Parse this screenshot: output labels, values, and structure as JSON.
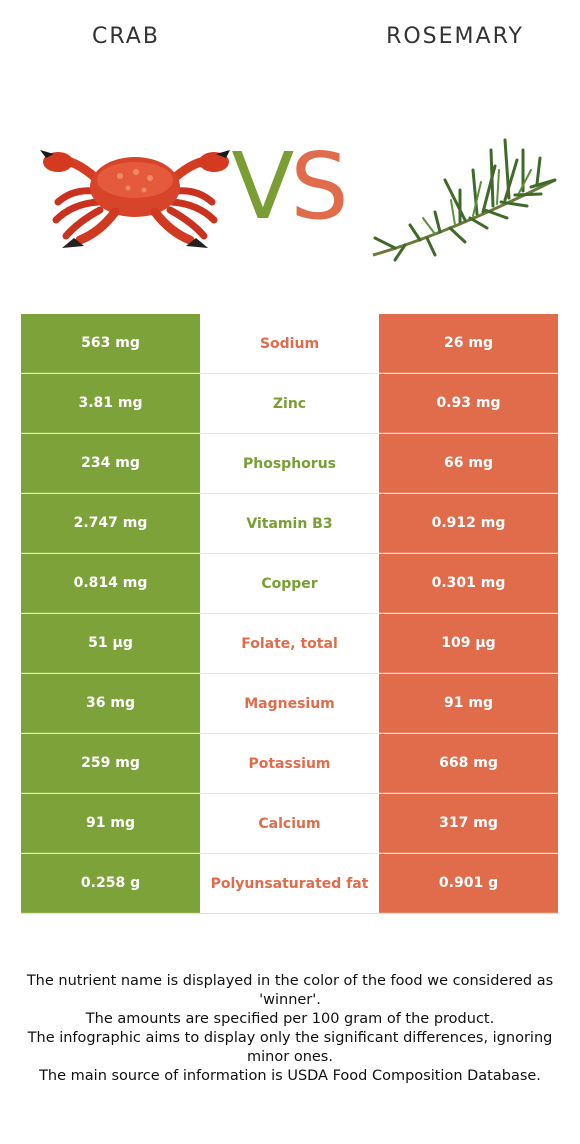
{
  "header": {
    "left_food": "CRAB",
    "right_food": "ROSEMARY",
    "vs_v": "V",
    "vs_s": "S"
  },
  "colors": {
    "crab": "#7ea23a",
    "rosemary": "#e06c4b"
  },
  "rows": [
    {
      "left": "563 mg",
      "nutrient": "Sodium",
      "right": "26 mg",
      "winner": "rosemary"
    },
    {
      "left": "3.81 mg",
      "nutrient": "Zinc",
      "right": "0.93 mg",
      "winner": "crab"
    },
    {
      "left": "234 mg",
      "nutrient": "Phosphorus",
      "right": "66 mg",
      "winner": "crab"
    },
    {
      "left": "2.747 mg",
      "nutrient": "Vitamin B3",
      "right": "0.912 mg",
      "winner": "crab"
    },
    {
      "left": "0.814 mg",
      "nutrient": "Copper",
      "right": "0.301 mg",
      "winner": "crab"
    },
    {
      "left": "51 µg",
      "nutrient": "Folate, total",
      "right": "109 µg",
      "winner": "rosemary"
    },
    {
      "left": "36 mg",
      "nutrient": "Magnesium",
      "right": "91 mg",
      "winner": "rosemary"
    },
    {
      "left": "259 mg",
      "nutrient": "Potassium",
      "right": "668 mg",
      "winner": "rosemary"
    },
    {
      "left": "91 mg",
      "nutrient": "Calcium",
      "right": "317 mg",
      "winner": "rosemary"
    },
    {
      "left": "0.258 g",
      "nutrient": "Polyunsaturated fat",
      "right": "0.901 g",
      "winner": "rosemary"
    }
  ],
  "footer": {
    "line1": "The nutrient name is displayed in the color of the food we considered as 'winner'.",
    "line2": "The amounts are specified per 100 gram of the product.",
    "line3": "The infographic aims to display only the significant differences, ignoring minor ones.",
    "line4": "The main source of information is USDA Food Composition Database."
  }
}
